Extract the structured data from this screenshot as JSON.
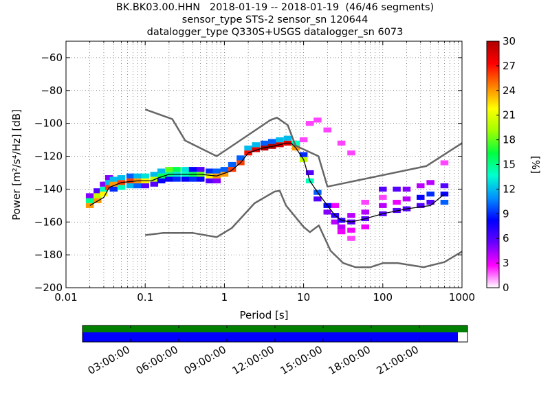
{
  "chart_data": {
    "type": "heatmap",
    "title_lines": [
      "BK.BK03.00.HHN   2018-01-19 -- 2018-01-19  (46/46 segments)",
      "sensor_type STS-2 sensor_sn 120644",
      "datalogger_type Q330S+USGS datalogger_sn 6073"
    ],
    "xlabel": "Period [s]",
    "ylabel": "Power [m²/s⁴/Hz] [dB]",
    "x_scale": "log",
    "xlim": [
      0.01,
      1000
    ],
    "ylim": [
      -200,
      -50
    ],
    "x_ticks": [
      {
        "value": 0.01,
        "label": "0.01"
      },
      {
        "value": 0.1,
        "label": "0.1"
      },
      {
        "value": 1,
        "label": "1"
      },
      {
        "value": 10,
        "label": "10"
      },
      {
        "value": 100,
        "label": "100"
      },
      {
        "value": 1000,
        "label": "1000"
      }
    ],
    "y_ticks": [
      {
        "value": -60,
        "label": "−60"
      },
      {
        "value": -80,
        "label": "−80"
      },
      {
        "value": -100,
        "label": "−100"
      },
      {
        "value": -120,
        "label": "−120"
      },
      {
        "value": -140,
        "label": "−140"
      },
      {
        "value": -160,
        "label": "−160"
      },
      {
        "value": -180,
        "label": "−180"
      },
      {
        "value": -200,
        "label": "−200"
      }
    ],
    "grid": true,
    "colorbar": {
      "label": "[%]",
      "range": [
        0,
        30
      ],
      "ticks": [
        {
          "value": 0,
          "label": "0"
        },
        {
          "value": 3,
          "label": "3"
        },
        {
          "value": 6,
          "label": "6"
        },
        {
          "value": 9,
          "label": "9"
        },
        {
          "value": 12,
          "label": "12"
        },
        {
          "value": 15,
          "label": "15"
        },
        {
          "value": 18,
          "label": "18"
        },
        {
          "value": 21,
          "label": "21"
        },
        {
          "value": 24,
          "label": "24"
        },
        {
          "value": 27,
          "label": "27"
        },
        {
          "value": 30,
          "label": "30"
        }
      ],
      "colors": [
        "#ffffff",
        "#ff00ff",
        "#6a00ff",
        "#0000ff",
        "#0090ff",
        "#00ffd0",
        "#00ff40",
        "#a0ff00",
        "#ffff00",
        "#ff8000",
        "#ff0000",
        "#b00000"
      ]
    },
    "series": [
      {
        "role": "high-noise-model",
        "color": "#666666",
        "x": [
          0.1,
          0.22,
          0.32,
          0.8,
          3.8,
          4.6,
          6.3,
          7.9,
          15.4,
          20,
          354,
          1000
        ],
        "y": [
          -91.5,
          -97.4,
          -110.5,
          -120,
          -98,
          -96.5,
          -101,
          -113.5,
          -120,
          -138.5,
          -126,
          -112
        ]
      },
      {
        "role": "low-noise-model",
        "color": "#666666",
        "x": [
          0.1,
          0.17,
          0.4,
          0.8,
          1.24,
          2.4,
          4.3,
          5,
          6,
          10,
          12,
          15.6,
          21.9,
          31.6,
          45,
          70,
          101,
          154,
          328,
          600,
          1000
        ],
        "y": [
          -168,
          -166.7,
          -166.7,
          -169.2,
          -163.7,
          -148.6,
          -141.5,
          -141,
          -150,
          -163,
          -166.2,
          -162.1,
          -177.5,
          -185,
          -187.5,
          -187.5,
          -185,
          -185,
          -187.5,
          -184.4,
          -178
        ]
      },
      {
        "role": "mode",
        "color": "#000000",
        "x": [
          0.02,
          0.03,
          0.035,
          0.05,
          0.08,
          0.12,
          0.15,
          0.2,
          0.3,
          0.5,
          0.8,
          1.2,
          1.6,
          2,
          3,
          4,
          5,
          6,
          7,
          8,
          10,
          12,
          15,
          20,
          25,
          30,
          40,
          60,
          100,
          200,
          400,
          600
        ],
        "y": [
          -150,
          -145,
          -139,
          -136,
          -135,
          -135,
          -133,
          -131,
          -131,
          -131,
          -132,
          -129,
          -124,
          -118,
          -115,
          -114,
          -113,
          -112,
          -112,
          -115,
          -122,
          -135,
          -142,
          -150,
          -156,
          -159,
          -160,
          -158,
          -155,
          -152,
          -150,
          -143
        ]
      }
    ],
    "heatmap_cells": [
      {
        "x": 0.02,
        "y": -150,
        "v": 24
      },
      {
        "x": 0.02,
        "y": -147,
        "v": 15
      },
      {
        "x": 0.02,
        "y": -144,
        "v": 5
      },
      {
        "x": 0.025,
        "y": -147,
        "v": 24
      },
      {
        "x": 0.025,
        "y": -144,
        "v": 20
      },
      {
        "x": 0.025,
        "y": -141,
        "v": 6
      },
      {
        "x": 0.03,
        "y": -143,
        "v": 22
      },
      {
        "x": 0.03,
        "y": -140,
        "v": 14
      },
      {
        "x": 0.03,
        "y": -137,
        "v": 5
      },
      {
        "x": 0.035,
        "y": -139,
        "v": 26
      },
      {
        "x": 0.035,
        "y": -136,
        "v": 12
      },
      {
        "x": 0.035,
        "y": -133,
        "v": 5
      },
      {
        "x": 0.04,
        "y": -137,
        "v": 24
      },
      {
        "x": 0.04,
        "y": -134,
        "v": 12
      },
      {
        "x": 0.04,
        "y": -140,
        "v": 9
      },
      {
        "x": 0.05,
        "y": -136,
        "v": 26
      },
      {
        "x": 0.05,
        "y": -133,
        "v": 12
      },
      {
        "x": 0.05,
        "y": -139,
        "v": 14
      },
      {
        "x": 0.065,
        "y": -135,
        "v": 26
      },
      {
        "x": 0.065,
        "y": -132,
        "v": 10
      },
      {
        "x": 0.065,
        "y": -138,
        "v": 12
      },
      {
        "x": 0.08,
        "y": -135,
        "v": 24
      },
      {
        "x": 0.08,
        "y": -132,
        "v": 12
      },
      {
        "x": 0.08,
        "y": -138,
        "v": 10
      },
      {
        "x": 0.1,
        "y": -135,
        "v": 22
      },
      {
        "x": 0.1,
        "y": -132,
        "v": 13
      },
      {
        "x": 0.1,
        "y": -138,
        "v": 6
      },
      {
        "x": 0.13,
        "y": -134,
        "v": 20
      },
      {
        "x": 0.13,
        "y": -131,
        "v": 12
      },
      {
        "x": 0.13,
        "y": -137,
        "v": 6
      },
      {
        "x": 0.16,
        "y": -132,
        "v": 16
      },
      {
        "x": 0.16,
        "y": -129,
        "v": 12
      },
      {
        "x": 0.16,
        "y": -135,
        "v": 8
      },
      {
        "x": 0.2,
        "y": -131,
        "v": 15
      },
      {
        "x": 0.2,
        "y": -128,
        "v": 18
      },
      {
        "x": 0.2,
        "y": -134,
        "v": 8
      },
      {
        "x": 0.25,
        "y": -131,
        "v": 13
      },
      {
        "x": 0.25,
        "y": -128,
        "v": 16
      },
      {
        "x": 0.25,
        "y": -134,
        "v": 9
      },
      {
        "x": 0.32,
        "y": -131,
        "v": 14
      },
      {
        "x": 0.32,
        "y": -128,
        "v": 13
      },
      {
        "x": 0.32,
        "y": -134,
        "v": 8
      },
      {
        "x": 0.4,
        "y": -131,
        "v": 16
      },
      {
        "x": 0.4,
        "y": -134,
        "v": 9
      },
      {
        "x": 0.4,
        "y": -128,
        "v": 8
      },
      {
        "x": 0.5,
        "y": -131,
        "v": 18
      },
      {
        "x": 0.5,
        "y": -134,
        "v": 8
      },
      {
        "x": 0.5,
        "y": -128,
        "v": 6
      },
      {
        "x": 0.65,
        "y": -132,
        "v": 22
      },
      {
        "x": 0.65,
        "y": -129,
        "v": 9
      },
      {
        "x": 0.65,
        "y": -135,
        "v": 6
      },
      {
        "x": 0.8,
        "y": -132,
        "v": 24
      },
      {
        "x": 0.8,
        "y": -129,
        "v": 10
      },
      {
        "x": 0.8,
        "y": -135,
        "v": 5
      },
      {
        "x": 1,
        "y": -131,
        "v": 24
      },
      {
        "x": 1,
        "y": -128,
        "v": 10
      },
      {
        "x": 1.25,
        "y": -128,
        "v": 26
      },
      {
        "x": 1.25,
        "y": -125,
        "v": 10
      },
      {
        "x": 1.6,
        "y": -124,
        "v": 26
      },
      {
        "x": 1.6,
        "y": -121,
        "v": 10
      },
      {
        "x": 2,
        "y": -118,
        "v": 27
      },
      {
        "x": 2,
        "y": -115,
        "v": 12
      },
      {
        "x": 2.5,
        "y": -116,
        "v": 28
      },
      {
        "x": 2.5,
        "y": -113,
        "v": 12
      },
      {
        "x": 3.2,
        "y": -115,
        "v": 30
      },
      {
        "x": 3.2,
        "y": -112,
        "v": 10
      },
      {
        "x": 4,
        "y": -114,
        "v": 30
      },
      {
        "x": 4,
        "y": -111,
        "v": 10
      },
      {
        "x": 5,
        "y": -113,
        "v": 29
      },
      {
        "x": 5,
        "y": -110,
        "v": 12
      },
      {
        "x": 6.3,
        "y": -112,
        "v": 28
      },
      {
        "x": 6.3,
        "y": -109,
        "v": 12
      },
      {
        "x": 8,
        "y": -115,
        "v": 24
      },
      {
        "x": 8,
        "y": -112,
        "v": 14
      },
      {
        "x": 10,
        "y": -122,
        "v": 20
      },
      {
        "x": 10,
        "y": -119,
        "v": 9
      },
      {
        "x": 12,
        "y": -135,
        "v": 14
      },
      {
        "x": 12,
        "y": -130,
        "v": 6
      },
      {
        "x": 15,
        "y": -142,
        "v": 10
      },
      {
        "x": 15,
        "y": -146,
        "v": 6
      },
      {
        "x": 20,
        "y": -150,
        "v": 8
      },
      {
        "x": 20,
        "y": -154,
        "v": 5
      },
      {
        "x": 25,
        "y": -156,
        "v": 7
      },
      {
        "x": 25,
        "y": -160,
        "v": 4
      },
      {
        "x": 25,
        "y": -150,
        "v": 3
      },
      {
        "x": 30,
        "y": -159,
        "v": 7
      },
      {
        "x": 30,
        "y": -163,
        "v": 4
      },
      {
        "x": 30,
        "y": -166,
        "v": 3
      },
      {
        "x": 40,
        "y": -160,
        "v": 6
      },
      {
        "x": 40,
        "y": -156,
        "v": 4
      },
      {
        "x": 40,
        "y": -165,
        "v": 3
      },
      {
        "x": 40,
        "y": -170,
        "v": 2
      },
      {
        "x": 60,
        "y": -158,
        "v": 6
      },
      {
        "x": 60,
        "y": -154,
        "v": 4
      },
      {
        "x": 60,
        "y": -163,
        "v": 3
      },
      {
        "x": 60,
        "y": -148,
        "v": 2
      },
      {
        "x": 100,
        "y": -155,
        "v": 6
      },
      {
        "x": 100,
        "y": -150,
        "v": 4
      },
      {
        "x": 100,
        "y": -145,
        "v": 2
      },
      {
        "x": 100,
        "y": -140,
        "v": 6
      },
      {
        "x": 150,
        "y": -153,
        "v": 6
      },
      {
        "x": 150,
        "y": -148,
        "v": 3
      },
      {
        "x": 150,
        "y": -140,
        "v": 6
      },
      {
        "x": 200,
        "y": -152,
        "v": 6
      },
      {
        "x": 200,
        "y": -146,
        "v": 4
      },
      {
        "x": 200,
        "y": -140,
        "v": 5
      },
      {
        "x": 300,
        "y": -150,
        "v": 6
      },
      {
        "x": 300,
        "y": -145,
        "v": 8
      },
      {
        "x": 300,
        "y": -138,
        "v": 4
      },
      {
        "x": 400,
        "y": -148,
        "v": 6
      },
      {
        "x": 400,
        "y": -143,
        "v": 9
      },
      {
        "x": 400,
        "y": -136,
        "v": 4
      },
      {
        "x": 600,
        "y": -143,
        "v": 8
      },
      {
        "x": 600,
        "y": -148,
        "v": 10
      },
      {
        "x": 600,
        "y": -138,
        "v": 6
      },
      {
        "x": 600,
        "y": -124,
        "v": 2
      },
      {
        "x": 10,
        "y": -110,
        "v": 2
      },
      {
        "x": 12,
        "y": -100,
        "v": 2
      },
      {
        "x": 15,
        "y": -98,
        "v": 2
      },
      {
        "x": 20,
        "y": -104,
        "v": 2
      },
      {
        "x": 30,
        "y": -112,
        "v": 2
      },
      {
        "x": 40,
        "y": -118,
        "v": 2
      }
    ],
    "time_axis": {
      "segments": 46,
      "ticks": [
        "03:00:00",
        "06:00:00",
        "09:00:00",
        "12:00:00",
        "15:00:00",
        "18:00:00",
        "21:00:00"
      ],
      "coverage_fraction": 0.975,
      "colors": {
        "top_band": "#008000",
        "bottom_band": "#0000ff"
      }
    }
  }
}
